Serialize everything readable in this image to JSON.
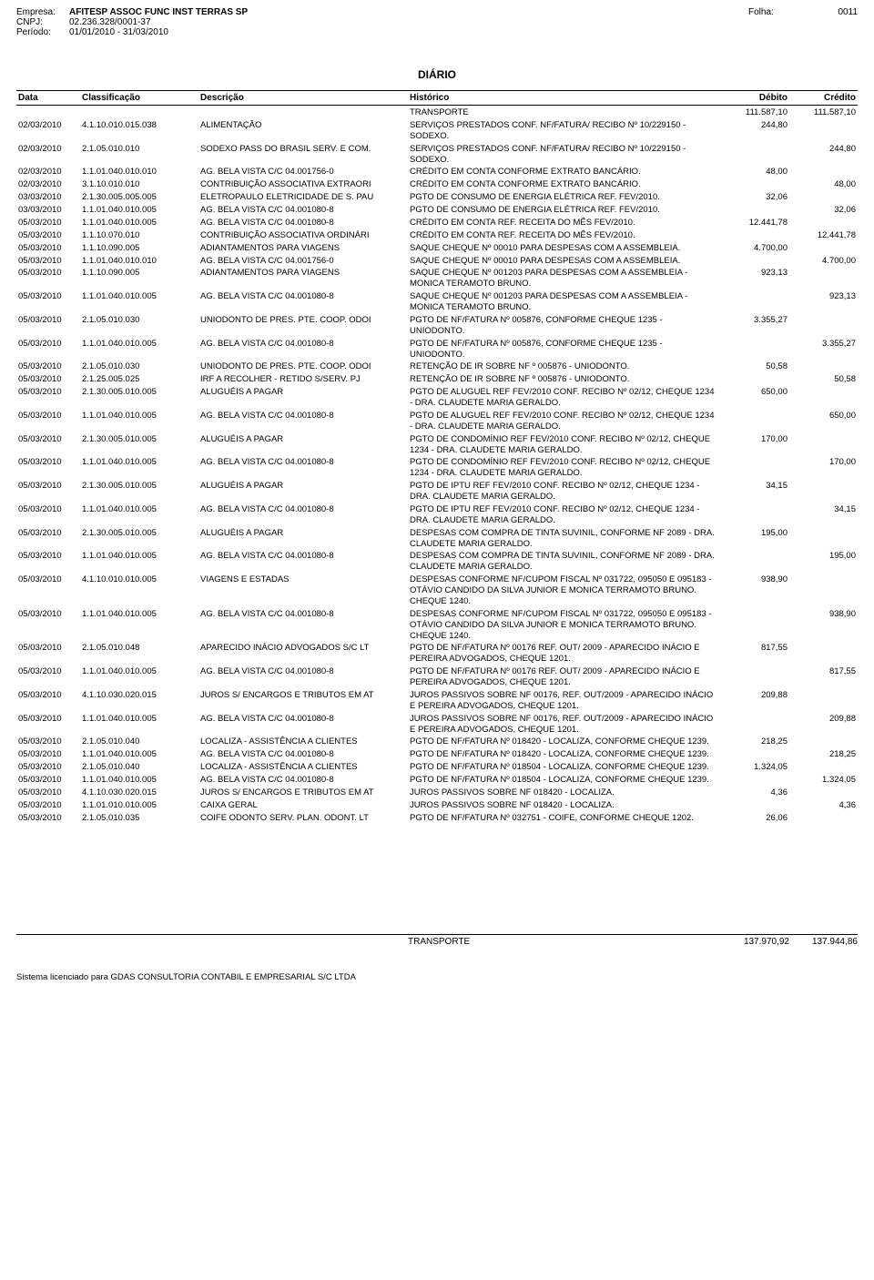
{
  "header": {
    "empresa_label": "Empresa:",
    "empresa": "AFITESP ASSOC FUNC INST TERRAS SP",
    "cnpj_label": "CNPJ:",
    "cnpj": "02.236.328/0001-37",
    "periodo_label": "Período:",
    "periodo": "01/01/2010  -  31/03/2010",
    "folha_label": "Folha:",
    "folha": "0011"
  },
  "title": "DIÁRIO",
  "columns": {
    "data": "Data",
    "classificacao": "Classificação",
    "descricao": "Descrição",
    "historico": "Histórico",
    "debito": "Débito",
    "credito": "Crédito"
  },
  "transporte_top": {
    "label": "TRANSPORTE",
    "debito": "111.587,10",
    "credito": "111.587,10"
  },
  "rows": [
    {
      "data": "02/03/2010",
      "class": "4.1.10.010.015.038",
      "desc": "ALIMENTAÇÃO",
      "hist": "SERVIÇOS PRESTADOS CONF. NF/FATURA/ RECIBO Nº 10/229150 - SODEXO.",
      "deb": "244,80",
      "cred": ""
    },
    {
      "data": "02/03/2010",
      "class": "2.1.05.010.010",
      "desc": "SODEXO PASS DO BRASIL SERV. E COM.",
      "hist": "SERVIÇOS PRESTADOS CONF. NF/FATURA/ RECIBO Nº 10/229150 - SODEXO.",
      "deb": "",
      "cred": "244,80"
    },
    {
      "data": "02/03/2010",
      "class": "1.1.01.040.010.010",
      "desc": "AG. BELA VISTA C/C 04.001756-0",
      "hist": "CRÉDITO EM CONTA CONFORME EXTRATO BANCÁRIO.",
      "deb": "48,00",
      "cred": ""
    },
    {
      "data": "02/03/2010",
      "class": "3.1.10.010.010",
      "desc": "CONTRIBUIÇÃO ASSOCIATIVA EXTRAORI",
      "hist": "CRÉDITO EM CONTA CONFORME EXTRATO BANCÁRIO.",
      "deb": "",
      "cred": "48,00"
    },
    {
      "data": "03/03/2010",
      "class": "2.1.30.005.005.005",
      "desc": "ELETROPAULO ELETRICIDADE DE S. PAU",
      "hist": "PGTO DE CONSUMO DE ENERGIA ELÉTRICA  REF. FEV/2010.",
      "deb": "32,06",
      "cred": ""
    },
    {
      "data": "03/03/2010",
      "class": "1.1.01.040.010.005",
      "desc": "AG. BELA VISTA C/C 04.001080-8",
      "hist": "PGTO DE CONSUMO DE ENERGIA ELÉTRICA  REF. FEV/2010.",
      "deb": "",
      "cred": "32,06"
    },
    {
      "data": "05/03/2010",
      "class": "1.1.01.040.010.005",
      "desc": "AG. BELA VISTA C/C 04.001080-8",
      "hist": "CRÉDITO EM CONTA REF. RECEITA DO  MÊS FEV/2010.",
      "deb": "12.441,78",
      "cred": ""
    },
    {
      "data": "05/03/2010",
      "class": "1.1.10.070.010",
      "desc": "CONTRIBUIÇÃO ASSOCIATIVA ORDINÁRI",
      "hist": "CRÉDITO EM CONTA REF. RECEITA DO  MÊS FEV/2010.",
      "deb": "",
      "cred": "12.441,78"
    },
    {
      "data": "05/03/2010",
      "class": "1.1.10.090.005",
      "desc": "ADIANTAMENTOS PARA VIAGENS",
      "hist": "SAQUE CHEQUE Nº 00010 PARA DESPESAS  COM A ASSEMBLEIA.",
      "deb": "4.700,00",
      "cred": ""
    },
    {
      "data": "05/03/2010",
      "class": "1.1.01.040.010.010",
      "desc": "AG. BELA VISTA C/C 04.001756-0",
      "hist": "SAQUE CHEQUE Nº 00010 PARA DESPESAS  COM A ASSEMBLEIA.",
      "deb": "",
      "cred": "4.700,00"
    },
    {
      "data": "05/03/2010",
      "class": "1.1.10.090.005",
      "desc": "ADIANTAMENTOS PARA VIAGENS",
      "hist": "SAQUE CHEQUE Nº 001203 PARA DESPESAS  COM A ASSEMBLEIA - MONICA TERAMOTO  BRUNO.",
      "deb": "923,13",
      "cred": ""
    },
    {
      "data": "05/03/2010",
      "class": "1.1.01.040.010.005",
      "desc": "AG. BELA VISTA C/C 04.001080-8",
      "hist": "SAQUE CHEQUE Nº 001203 PARA DESPESAS  COM A ASSEMBLEIA - MONICA TERAMOTO  BRUNO.",
      "deb": "",
      "cred": "923,13"
    },
    {
      "data": "05/03/2010",
      "class": "2.1.05.010.030",
      "desc": "UNIODONTO DE PRES. PTE. COOP. ODOI",
      "hist": "PGTO DE NF/FATURA Nº 005876,  CONFORME CHEQUE 1235 - UNIODONTO.",
      "deb": "3.355,27",
      "cred": ""
    },
    {
      "data": "05/03/2010",
      "class": "1.1.01.040.010.005",
      "desc": "AG. BELA VISTA C/C 04.001080-8",
      "hist": "PGTO DE NF/FATURA Nº 005876,  CONFORME CHEQUE 1235 - UNIODONTO.",
      "deb": "",
      "cred": "3.355,27"
    },
    {
      "data": "05/03/2010",
      "class": "2.1.05.010.030",
      "desc": "UNIODONTO DE PRES. PTE. COOP. ODOI",
      "hist": "RETENÇÃO DE IR SOBRE NF º 005876 - UNIODONTO.",
      "deb": "50,58",
      "cred": ""
    },
    {
      "data": "05/03/2010",
      "class": "2.1.25.005.025",
      "desc": "IRF A RECOLHER - RETIDO S/SERV. PJ",
      "hist": "RETENÇÃO DE IR SOBRE NF º 005876 - UNIODONTO.",
      "deb": "",
      "cred": "50,58"
    },
    {
      "data": "05/03/2010",
      "class": "2.1.30.005.010.005",
      "desc": "ALUGUÉIS A PAGAR",
      "hist": "PGTO DE ALUGUEL REF FEV/2010 CONF.  RECIBO Nº 02/12, CHEQUE 1234 - DRA.  CLAUDETE MARIA GERALDO.",
      "deb": "650,00",
      "cred": ""
    },
    {
      "data": "05/03/2010",
      "class": "1.1.01.040.010.005",
      "desc": "AG. BELA VISTA C/C 04.001080-8",
      "hist": "PGTO DE ALUGUEL REF FEV/2010 CONF.  RECIBO Nº 02/12, CHEQUE 1234 - DRA.  CLAUDETE MARIA GERALDO.",
      "deb": "",
      "cred": "650,00"
    },
    {
      "data": "05/03/2010",
      "class": "2.1.30.005.010.005",
      "desc": "ALUGUÉIS A PAGAR",
      "hist": "PGTO DE CONDOMÍNIO REF FEV/2010  CONF. RECIBO Nº 02/12, CHEQUE 1234 -  DRA. CLAUDETE MARIA GERALDO.",
      "deb": "170,00",
      "cred": ""
    },
    {
      "data": "05/03/2010",
      "class": "1.1.01.040.010.005",
      "desc": "AG. BELA VISTA C/C 04.001080-8",
      "hist": "PGTO DE CONDOMÍNIO REF FEV/2010  CONF. RECIBO Nº 02/12, CHEQUE 1234 -  DRA. CLAUDETE MARIA GERALDO.",
      "deb": "",
      "cred": "170,00"
    },
    {
      "data": "05/03/2010",
      "class": "2.1.30.005.010.005",
      "desc": "ALUGUÉIS A PAGAR",
      "hist": "PGTO DE IPTU REF FEV/2010 CONF.  RECIBO Nº 02/12, CHEQUE 1234 - DRA.  CLAUDETE MARIA GERALDO.",
      "deb": "34,15",
      "cred": ""
    },
    {
      "data": "05/03/2010",
      "class": "1.1.01.040.010.005",
      "desc": "AG. BELA VISTA C/C 04.001080-8",
      "hist": "PGTO DE IPTU REF FEV/2010 CONF.  RECIBO Nº 02/12, CHEQUE 1234 - DRA.  CLAUDETE MARIA GERALDO.",
      "deb": "",
      "cred": "34,15"
    },
    {
      "data": "05/03/2010",
      "class": "2.1.30.005.010.005",
      "desc": "ALUGUÉIS A PAGAR",
      "hist": "DESPESAS COM COMPRA DE TINTA  SUVINIL, CONFORME NF 2089 - DRA.  CLAUDETE MARIA GERALDO.",
      "deb": "195,00",
      "cred": ""
    },
    {
      "data": "05/03/2010",
      "class": "1.1.01.040.010.005",
      "desc": "AG. BELA VISTA C/C 04.001080-8",
      "hist": "DESPESAS COM COMPRA DE TINTA  SUVINIL, CONFORME NF 2089 - DRA.  CLAUDETE MARIA GERALDO.",
      "deb": "",
      "cred": "195,00"
    },
    {
      "data": "05/03/2010",
      "class": "4.1.10.010.010.005",
      "desc": "VIAGENS E ESTADAS",
      "hist": "DESPESAS CONFORME NF/CUPOM FISCAL  Nº 031722, 095050 E 095183 - OTÁVIO  CANDIDO DA SILVA JUNIOR E MONICA  TERRAMOTO BRUNO. CHEQUE 1240.",
      "deb": "938,90",
      "cred": ""
    },
    {
      "data": "05/03/2010",
      "class": "1.1.01.040.010.005",
      "desc": "AG. BELA VISTA C/C 04.001080-8",
      "hist": "DESPESAS CONFORME NF/CUPOM FISCAL  Nº 031722, 095050 E 095183 - OTÁVIO  CANDIDO DA SILVA JUNIOR E MONICA  TERRAMOTO BRUNO. CHEQUE 1240.",
      "deb": "",
      "cred": "938,90"
    },
    {
      "data": "05/03/2010",
      "class": "2.1.05.010.048",
      "desc": "APARECIDO INÁCIO ADVOGADOS S/C LT",
      "hist": "PGTO DE NF/FATURA Nº 00176 REF. OUT/ 2009 - APARECIDO INÁCIO E PEREIRA  ADVOGADOS, CHEQUE 1201.",
      "deb": "817,55",
      "cred": ""
    },
    {
      "data": "05/03/2010",
      "class": "1.1.01.040.010.005",
      "desc": "AG. BELA VISTA C/C 04.001080-8",
      "hist": "PGTO DE NF/FATURA Nº 00176 REF. OUT/ 2009 - APARECIDO INÁCIO E PEREIRA  ADVOGADOS, CHEQUE 1201.",
      "deb": "",
      "cred": "817,55"
    },
    {
      "data": "05/03/2010",
      "class": "4.1.10.030.020.015",
      "desc": "JUROS S/ ENCARGOS E TRIBUTOS EM AT",
      "hist": "JUROS PASSIVOS SOBRE NF 00176, REF. OUT/2009 - APARECIDO INÁCIO E PEREIRA ADVOGADOS, CHEQUE 1201.",
      "deb": "209,88",
      "cred": ""
    },
    {
      "data": "05/03/2010",
      "class": "1.1.01.040.010.005",
      "desc": "AG. BELA VISTA C/C 04.001080-8",
      "hist": "JUROS PASSIVOS SOBRE NF 00176, REF. OUT/2009 - APARECIDO INÁCIO E PEREIRA ADVOGADOS, CHEQUE 1201.",
      "deb": "",
      "cred": "209,88"
    },
    {
      "data": "05/03/2010",
      "class": "2.1.05.010.040",
      "desc": "LOCALIZA - ASSISTÊNCIA A CLIENTES",
      "hist": "PGTO DE NF/FATURA Nº 018420 - LOCALIZA, CONFORME CHEQUE 1239.",
      "deb": "218,25",
      "cred": ""
    },
    {
      "data": "05/03/2010",
      "class": "1.1.01.040.010.005",
      "desc": "AG. BELA VISTA C/C 04.001080-8",
      "hist": "PGTO DE NF/FATURA Nº 018420 - LOCALIZA, CONFORME CHEQUE 1239.",
      "deb": "",
      "cred": "218,25"
    },
    {
      "data": "05/03/2010",
      "class": "2.1.05.010.040",
      "desc": "LOCALIZA - ASSISTÊNCIA A CLIENTES",
      "hist": "PGTO DE NF/FATURA Nº 018504 - LOCALIZA, CONFORME CHEQUE 1239.",
      "deb": "1.324,05",
      "cred": ""
    },
    {
      "data": "05/03/2010",
      "class": "1.1.01.040.010.005",
      "desc": "AG. BELA VISTA C/C 04.001080-8",
      "hist": "PGTO DE NF/FATURA Nº 018504 - LOCALIZA, CONFORME CHEQUE 1239.",
      "deb": "",
      "cred": "1.324,05"
    },
    {
      "data": "05/03/2010",
      "class": "4.1.10.030.020.015",
      "desc": "JUROS S/ ENCARGOS E TRIBUTOS EM AT",
      "hist": "JUROS PASSIVOS SOBRE NF 018420 -  LOCALIZA.",
      "deb": "4,36",
      "cred": ""
    },
    {
      "data": "05/03/2010",
      "class": "1.1.01.010.010.005",
      "desc": "CAIXA GERAL",
      "hist": "JUROS PASSIVOS SOBRE NF 018420 -  LOCALIZA.",
      "deb": "",
      "cred": "4,36"
    },
    {
      "data": "05/03/2010",
      "class": "2.1.05.010.035",
      "desc": "COIFE ODONTO SERV. PLAN. ODONT. LT",
      "hist": "PGTO DE NF/FATURA Nº 032751 - COIFE, CONFORME CHEQUE 1202.",
      "deb": "26,06",
      "cred": ""
    }
  ],
  "transporte_bottom": {
    "label": "TRANSPORTE",
    "debito": "137.970,92",
    "credito": "137.944,86"
  },
  "license": "Sistema licenciado para GDAS CONSULTORIA CONTABIL E EMPRESARIAL S/C LTDA"
}
